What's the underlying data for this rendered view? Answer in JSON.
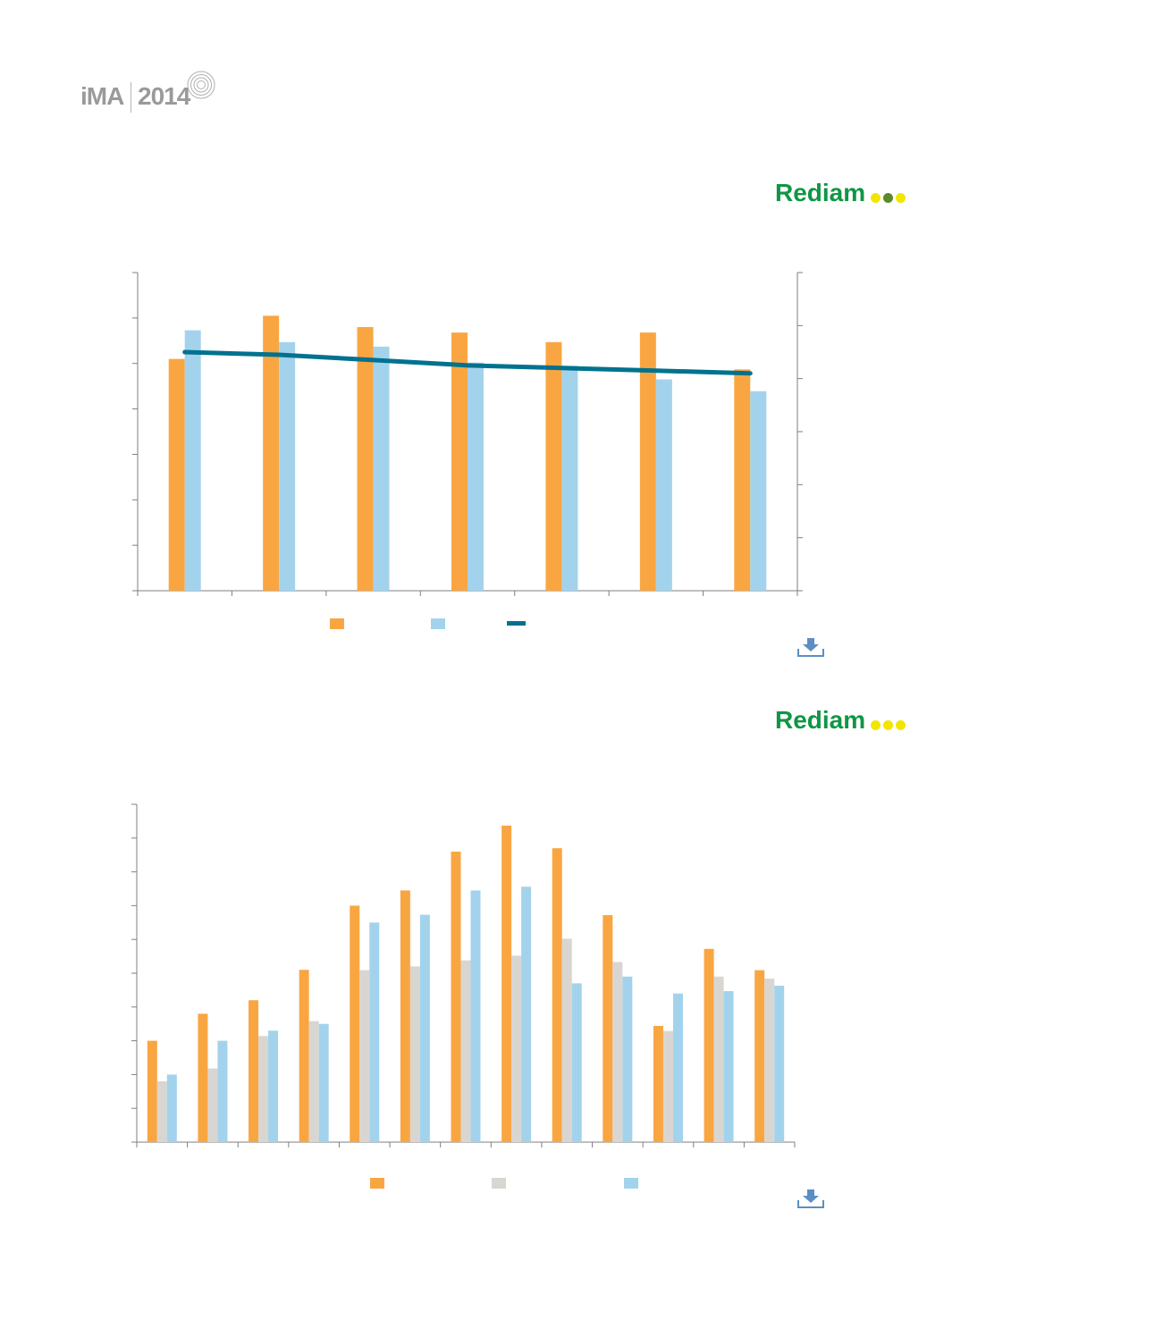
{
  "header": {
    "logo_ima": "iMA",
    "logo_year": "2014"
  },
  "brand": {
    "name": "Rediam",
    "green": "#0f9645",
    "dot_yellow": "#f2e600",
    "dot_olive": "#5a8a2a"
  },
  "colors": {
    "orange": "#f9a642",
    "blue": "#a3d3ec",
    "grey": "#d9d6d2",
    "line": "#00728f",
    "axis": "#7f7f7f",
    "download": "#5b8fc4"
  },
  "icons": {
    "download": "download-icon",
    "logo": "concentric-rings-icon"
  },
  "chart_data": [
    {
      "type": "bar",
      "title": "",
      "categories": [
        "",
        "",
        "",
        "",
        "",
        "",
        ""
      ],
      "ylim": [
        0,
        7
      ],
      "y2lim": [
        0,
        6
      ],
      "grid": false,
      "legend": "bottom-center",
      "series": [
        {
          "name": "",
          "kind": "bar",
          "axis": "left",
          "color": "#f9a642",
          "values": [
            5.1,
            6.05,
            5.8,
            5.68,
            5.47,
            5.68,
            4.87
          ]
        },
        {
          "name": "",
          "kind": "bar",
          "axis": "left",
          "color": "#a3d3ec",
          "values": [
            5.73,
            5.47,
            5.37,
            5.02,
            4.95,
            4.65,
            4.39
          ]
        },
        {
          "name": "",
          "kind": "line",
          "axis": "right",
          "color": "#00728f",
          "values": [
            4.5,
            4.45,
            4.35,
            4.25,
            4.2,
            4.15,
            4.1
          ]
        }
      ]
    },
    {
      "type": "bar",
      "title": "",
      "categories": [
        "",
        "",
        "",
        "",
        "",
        "",
        "",
        "",
        "",
        "",
        "",
        "",
        ""
      ],
      "ylim": [
        0,
        10
      ],
      "grid": false,
      "legend": "bottom-center",
      "series": [
        {
          "name": "",
          "color": "#f9a642",
          "values": [
            3.0,
            3.8,
            4.2,
            5.1,
            7.0,
            7.45,
            8.6,
            9.37,
            8.7,
            6.72,
            3.44,
            5.72,
            5.09
          ]
        },
        {
          "name": "",
          "color": "#d9d6d2",
          "values": [
            1.8,
            2.18,
            3.14,
            3.58,
            5.09,
            5.2,
            5.38,
            5.52,
            6.02,
            5.33,
            3.29,
            4.9,
            4.84
          ]
        },
        {
          "name": "",
          "color": "#a3d3ec",
          "values": [
            2.0,
            3.0,
            3.3,
            3.5,
            6.5,
            6.73,
            7.45,
            7.56,
            4.7,
            4.9,
            4.4,
            4.47,
            4.63
          ]
        }
      ]
    }
  ]
}
